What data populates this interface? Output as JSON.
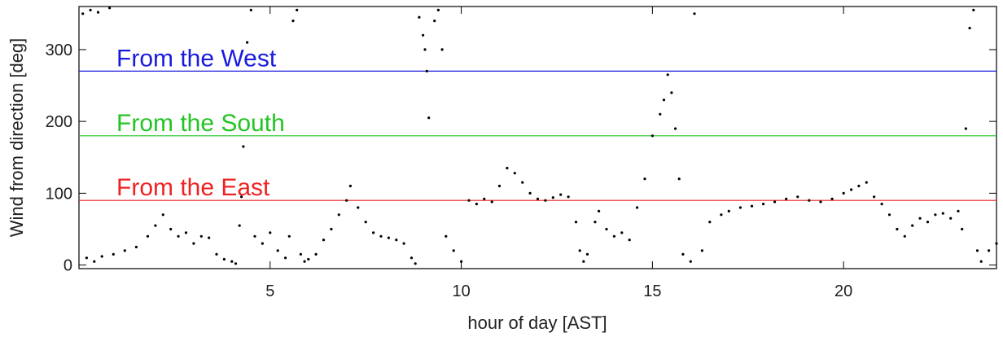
{
  "chart_data": {
    "type": "scatter",
    "xlabel": "hour of day [AST]",
    "ylabel": "Wind from direction [deg]",
    "xlim": [
      0,
      24
    ],
    "ylim": [
      -5,
      360
    ],
    "x_ticks": [
      5,
      10,
      15,
      20
    ],
    "y_ticks": [
      0,
      100,
      200,
      300
    ],
    "grid": false,
    "reference_lines": [
      {
        "label": "From the West",
        "y": 270,
        "color": "#1a1adf"
      },
      {
        "label": "From the South",
        "y": 180,
        "color": "#22c422"
      },
      {
        "label": "From the East",
        "y": 90,
        "color": "#ee2222"
      }
    ],
    "series": [
      {
        "color": "#000000",
        "points": [
          [
            0.1,
            350
          ],
          [
            0.3,
            355
          ],
          [
            0.5,
            352
          ],
          [
            0.8,
            358
          ],
          [
            0.2,
            10
          ],
          [
            0.4,
            5
          ],
          [
            0.6,
            12
          ],
          [
            0.9,
            15
          ],
          [
            1.2,
            20
          ],
          [
            1.5,
            25
          ],
          [
            1.8,
            40
          ],
          [
            2.0,
            55
          ],
          [
            2.2,
            70
          ],
          [
            2.4,
            50
          ],
          [
            2.6,
            40
          ],
          [
            2.8,
            45
          ],
          [
            3.0,
            30
          ],
          [
            3.2,
            40
          ],
          [
            3.4,
            38
          ],
          [
            3.6,
            15
          ],
          [
            3.8,
            8
          ],
          [
            4.0,
            5
          ],
          [
            4.1,
            2
          ],
          [
            4.2,
            55
          ],
          [
            4.25,
            95
          ],
          [
            4.3,
            165
          ],
          [
            4.4,
            310
          ],
          [
            4.5,
            355
          ],
          [
            4.6,
            40
          ],
          [
            4.8,
            30
          ],
          [
            5.0,
            45
          ],
          [
            5.2,
            20
          ],
          [
            5.4,
            10
          ],
          [
            5.5,
            40
          ],
          [
            5.6,
            340
          ],
          [
            5.7,
            355
          ],
          [
            5.8,
            15
          ],
          [
            5.9,
            5
          ],
          [
            6.0,
            8
          ],
          [
            6.2,
            15
          ],
          [
            6.4,
            35
          ],
          [
            6.6,
            50
          ],
          [
            6.8,
            70
          ],
          [
            7.0,
            90
          ],
          [
            7.1,
            110
          ],
          [
            7.3,
            80
          ],
          [
            7.5,
            60
          ],
          [
            7.7,
            45
          ],
          [
            7.9,
            40
          ],
          [
            8.1,
            38
          ],
          [
            8.3,
            35
          ],
          [
            8.5,
            30
          ],
          [
            8.7,
            10
          ],
          [
            8.8,
            2
          ],
          [
            8.9,
            345
          ],
          [
            9.0,
            320
          ],
          [
            9.05,
            300
          ],
          [
            9.1,
            270
          ],
          [
            9.15,
            205
          ],
          [
            9.3,
            340
          ],
          [
            9.4,
            355
          ],
          [
            9.5,
            300
          ],
          [
            9.6,
            40
          ],
          [
            9.8,
            20
          ],
          [
            10.0,
            5
          ],
          [
            10.2,
            90
          ],
          [
            10.4,
            85
          ],
          [
            10.6,
            92
          ],
          [
            10.8,
            88
          ],
          [
            11.0,
            110
          ],
          [
            11.2,
            135
          ],
          [
            11.4,
            128
          ],
          [
            11.6,
            115
          ],
          [
            11.8,
            100
          ],
          [
            12.0,
            92
          ],
          [
            12.2,
            90
          ],
          [
            12.4,
            94
          ],
          [
            12.6,
            98
          ],
          [
            12.8,
            95
          ],
          [
            13.0,
            60
          ],
          [
            13.1,
            20
          ],
          [
            13.2,
            5
          ],
          [
            13.3,
            15
          ],
          [
            13.5,
            60
          ],
          [
            13.6,
            75
          ],
          [
            13.8,
            50
          ],
          [
            14.0,
            40
          ],
          [
            14.2,
            45
          ],
          [
            14.4,
            35
          ],
          [
            14.6,
            80
          ],
          [
            14.8,
            120
          ],
          [
            15.0,
            180
          ],
          [
            15.2,
            210
          ],
          [
            15.3,
            230
          ],
          [
            15.4,
            265
          ],
          [
            15.5,
            240
          ],
          [
            15.6,
            190
          ],
          [
            15.7,
            120
          ],
          [
            15.8,
            15
          ],
          [
            16.0,
            5
          ],
          [
            16.1,
            350
          ],
          [
            16.3,
            20
          ],
          [
            16.5,
            60
          ],
          [
            16.8,
            70
          ],
          [
            17.0,
            75
          ],
          [
            17.3,
            80
          ],
          [
            17.6,
            82
          ],
          [
            17.9,
            85
          ],
          [
            18.2,
            88
          ],
          [
            18.5,
            92
          ],
          [
            18.8,
            95
          ],
          [
            19.1,
            90
          ],
          [
            19.4,
            88
          ],
          [
            19.7,
            92
          ],
          [
            20.0,
            100
          ],
          [
            20.2,
            105
          ],
          [
            20.4,
            110
          ],
          [
            20.6,
            115
          ],
          [
            20.8,
            95
          ],
          [
            21.0,
            85
          ],
          [
            21.2,
            70
          ],
          [
            21.4,
            50
          ],
          [
            21.6,
            40
          ],
          [
            21.8,
            55
          ],
          [
            22.0,
            65
          ],
          [
            22.2,
            60
          ],
          [
            22.4,
            70
          ],
          [
            22.6,
            72
          ],
          [
            22.8,
            65
          ],
          [
            23.0,
            75
          ],
          [
            23.1,
            50
          ],
          [
            23.2,
            190
          ],
          [
            23.3,
            330
          ],
          [
            23.4,
            355
          ],
          [
            23.5,
            20
          ],
          [
            23.6,
            5
          ],
          [
            23.8,
            20
          ],
          [
            24.0,
            30
          ]
        ]
      }
    ]
  }
}
